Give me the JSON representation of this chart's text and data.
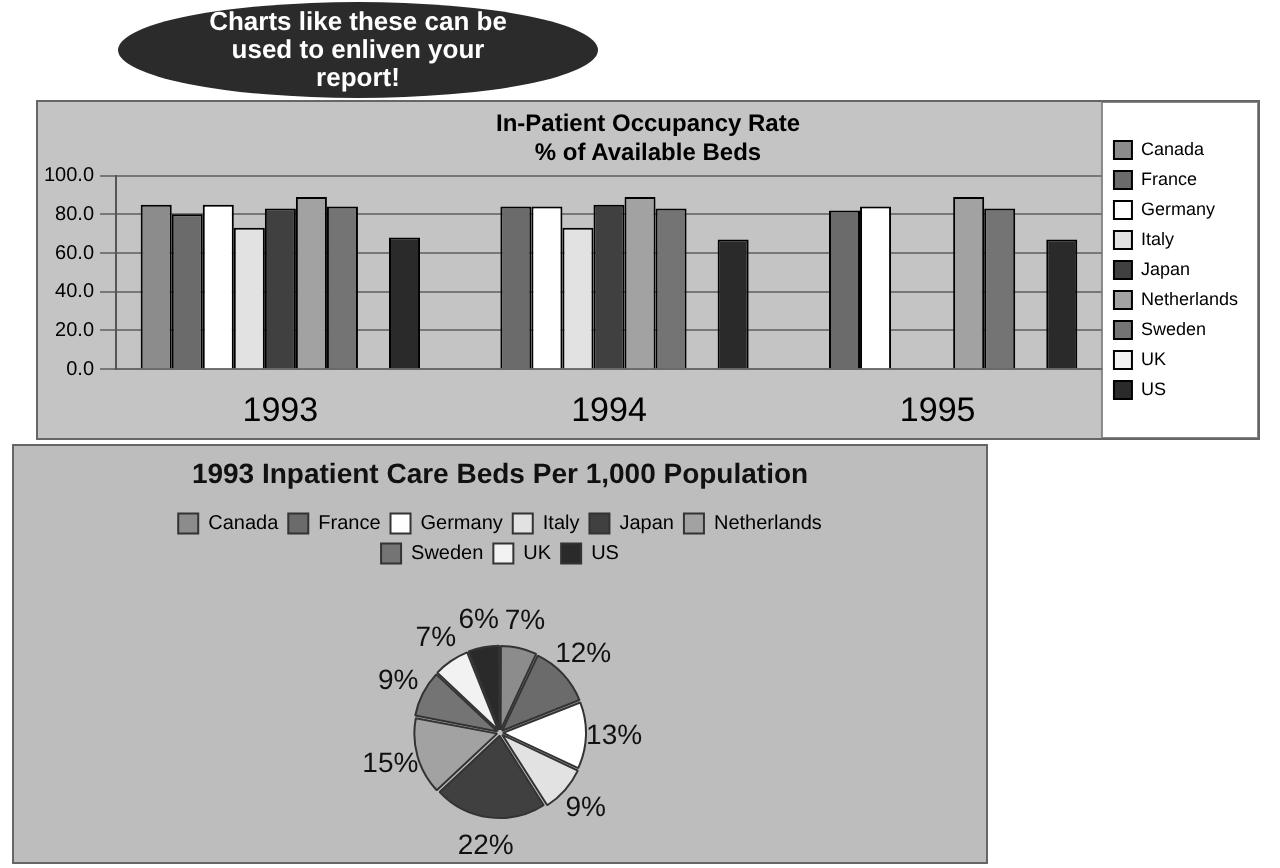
{
  "chart_data": [
    {
      "type": "bar",
      "title": [
        "In-Patient Occupancy Rate",
        "% of Available Beds"
      ],
      "categories": [
        "1993",
        "1994",
        "1995"
      ],
      "series": [
        {
          "name": "Canada",
          "color": "#8c8c8c",
          "values": [
            85,
            null,
            null
          ]
        },
        {
          "name": "France",
          "color": "#6b6b6b",
          "values": [
            80,
            84,
            82
          ]
        },
        {
          "name": "Germany",
          "color": "#ffffff",
          "values": [
            85,
            84,
            84
          ]
        },
        {
          "name": "Italy",
          "color": "#e2e2e2",
          "values": [
            73,
            73,
            null
          ]
        },
        {
          "name": "Japan",
          "color": "#404040",
          "values": [
            83,
            85,
            null
          ]
        },
        {
          "name": "Netherlands",
          "color": "#a2a2a2",
          "values": [
            89,
            89,
            89
          ]
        },
        {
          "name": "Sweden",
          "color": "#747474",
          "values": [
            84,
            83,
            83
          ]
        },
        {
          "name": "UK",
          "color": "#f2f2f2",
          "values": [
            null,
            null,
            null
          ]
        },
        {
          "name": "US",
          "color": "#2a2a2a",
          "values": [
            68,
            67,
            67
          ]
        }
      ],
      "ylim": [
        0,
        100
      ],
      "yticks": [
        {
          "value": 0,
          "label": "0.0"
        },
        {
          "value": 20,
          "label": "20.0"
        },
        {
          "value": 40,
          "label": "40.0"
        },
        {
          "value": 60,
          "label": "60.0"
        },
        {
          "value": 80,
          "label": "80.0"
        },
        {
          "value": 100,
          "label": "100.0"
        }
      ],
      "grid": "y",
      "legend": "right",
      "annotations": [
        "Charts like these can be used to enliven your report!"
      ]
    },
    {
      "type": "pie",
      "title": "1993 Inpatient Care Beds Per 1,000 Population",
      "categories": [
        "Canada",
        "France",
        "Germany",
        "Italy",
        "Japan",
        "Netherlands",
        "Sweden",
        "UK",
        "US"
      ],
      "values": [
        7,
        12,
        13,
        9,
        22,
        15,
        9,
        7,
        6
      ],
      "colors": [
        "#8c8c8c",
        "#6b6b6b",
        "#ffffff",
        "#e2e2e2",
        "#404040",
        "#a2a2a2",
        "#747474",
        "#f2f2f2",
        "#2a2a2a"
      ],
      "value_labels": [
        "7%",
        "12%",
        "13%",
        "9%",
        "22%",
        "15%",
        "9%",
        "7%",
        "6%"
      ],
      "legend": "top"
    }
  ]
}
